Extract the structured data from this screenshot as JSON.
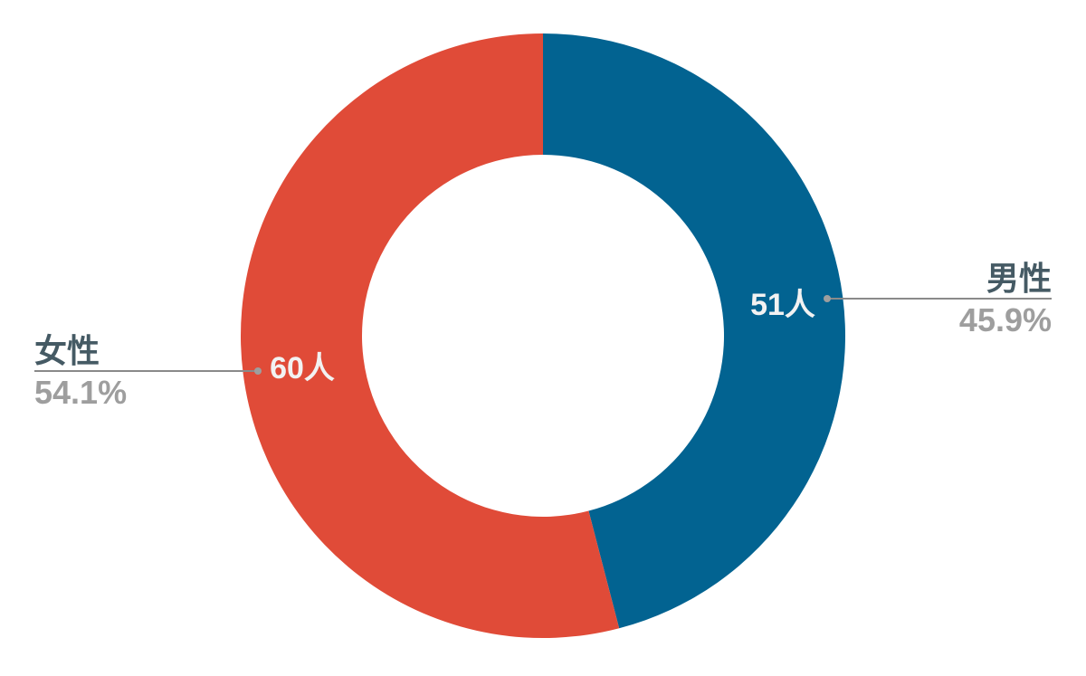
{
  "chart_data": {
    "type": "pie",
    "donut": true,
    "categories": [
      "男性",
      "女性"
    ],
    "values": [
      51,
      60
    ],
    "value_labels": [
      "51人",
      "60人"
    ],
    "percent_labels": [
      "45.9%",
      "54.1%"
    ],
    "colors": [
      "#026391",
      "#e04b38"
    ],
    "legend": "none"
  }
}
